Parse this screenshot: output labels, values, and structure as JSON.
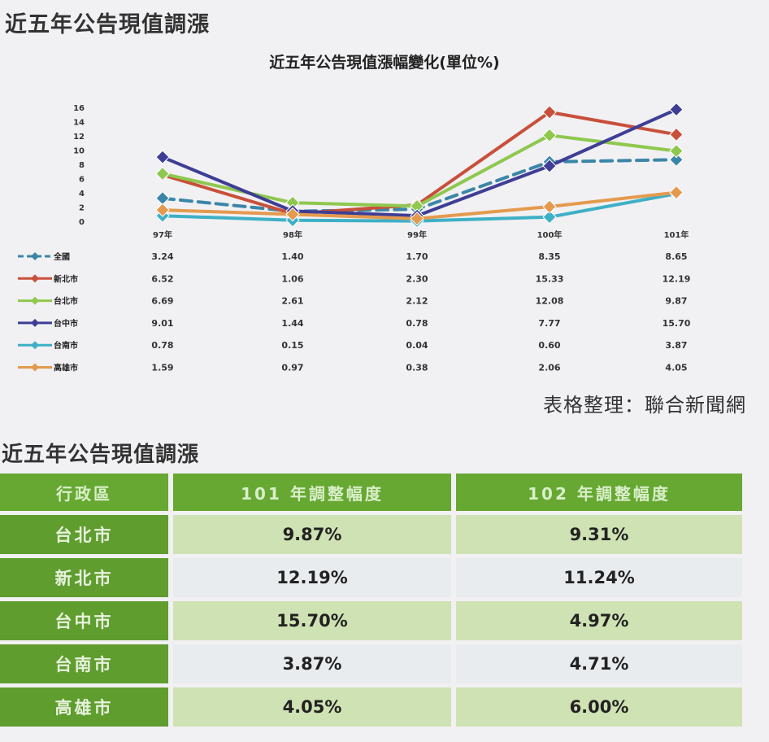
{
  "header": {
    "title": "近五年公告現值調漲"
  },
  "chart_data": {
    "type": "line",
    "title": "近五年公告現值漲幅變化(單位%)",
    "categories": [
      "97年",
      "98年",
      "99年",
      "100年",
      "101年"
    ],
    "y_ticks": [
      "16",
      "14",
      "12",
      "10",
      "8",
      "6",
      "4",
      "2",
      "0"
    ],
    "ylim": [
      0,
      16
    ],
    "series": [
      {
        "name": "全國",
        "color": "#3a86a8",
        "dashed": true,
        "values": [
          3.24,
          1.4,
          1.7,
          8.35,
          8.65
        ]
      },
      {
        "name": "新北市",
        "color": "#c8503a",
        "dashed": false,
        "values": [
          6.52,
          1.06,
          2.3,
          15.33,
          12.19
        ]
      },
      {
        "name": "台北市",
        "color": "#8ec84e",
        "dashed": false,
        "values": [
          6.69,
          2.61,
          2.12,
          12.08,
          9.87
        ]
      },
      {
        "name": "台中市",
        "color": "#3e3e96",
        "dashed": false,
        "values": [
          9.01,
          1.44,
          0.78,
          7.77,
          15.7
        ]
      },
      {
        "name": "台南市",
        "color": "#3db0c6",
        "dashed": false,
        "values": [
          0.78,
          0.15,
          0.04,
          0.6,
          3.87
        ]
      },
      {
        "name": "高雄市",
        "color": "#e49a4e",
        "dashed": false,
        "values": [
          1.59,
          0.97,
          0.38,
          2.06,
          4.05
        ]
      }
    ],
    "value_labels": [
      [
        "3.24",
        "1.40",
        "1.70",
        "8.35",
        "8.65"
      ],
      [
        "6.52",
        "1.06",
        "2.30",
        "15.33",
        "12.19"
      ],
      [
        "6.69",
        "2.61",
        "2.12",
        "12.08",
        "9.87"
      ],
      [
        "9.01",
        "1.44",
        "0.78",
        "7.77",
        "15.70"
      ],
      [
        "0.78",
        "0.15",
        "0.04",
        "0.60",
        "3.87"
      ],
      [
        "1.59",
        "0.97",
        "0.38",
        "2.06",
        "4.05"
      ]
    ],
    "legend": "left-table"
  },
  "credit": "表格整理：聯合新聞網",
  "table_section": {
    "title": "近五年公告現值調漲",
    "headers": [
      "行政區",
      "101 年調整幅度",
      "102 年調整幅度"
    ],
    "rows": [
      {
        "district": "台北市",
        "y101": "9.87%",
        "y102": "9.31%"
      },
      {
        "district": "新北市",
        "y101": "12.19%",
        "y102": "11.24%"
      },
      {
        "district": "台中市",
        "y101": "15.70%",
        "y102": "4.97%"
      },
      {
        "district": "台南市",
        "y101": "3.87%",
        "y102": "4.71%"
      },
      {
        "district": "高雄市",
        "y101": "4.05%",
        "y102": "6.00%"
      }
    ]
  }
}
